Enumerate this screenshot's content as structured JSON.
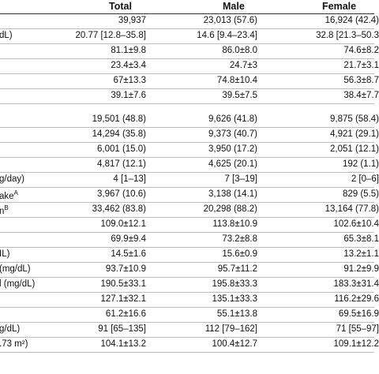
{
  "header": {
    "total": "Total",
    "male": "Male",
    "female": "Female"
  },
  "rows": [
    {
      "label": "",
      "total": "39,937",
      "male": "23,013 (57.6)",
      "female": "16,924 (42.4)"
    },
    {
      "label": "dL)",
      "total": "20.77 [12.8–35.8]",
      "male": "14.6 [9.4–23.4]",
      "female": "32.8 [21.3–50.3"
    },
    {
      "label": "",
      "total": "81.1±9.8",
      "male": "86.0±8.0",
      "female": "74.6±8.2"
    },
    {
      "label": "",
      "total": "23.4±3.4",
      "male": "24.7±3",
      "female": "21.7±3.1"
    },
    {
      "label": "",
      "total": "67±13.3",
      "male": "74.8±10.4",
      "female": "56.3±8.7"
    },
    {
      "label": "",
      "total": "39.1±7.6",
      "male": "39.5±7.5",
      "female": "38.4±7.7"
    },
    {
      "label": "",
      "total": "19,501 (48.8)",
      "male": "9,626 (41.8)",
      "female": "9,875 (58.4)"
    },
    {
      "label": "",
      "total": "14,294 (35.8)",
      "male": "9,373 (40.7)",
      "female": "4,921 (29.1)"
    },
    {
      "label": "",
      "total": "6,001 (15.0)",
      "male": "3,950 (17.2)",
      "female": "2,051 (12.1)"
    },
    {
      "label": "",
      "total": "4,817 (12.1)",
      "male": "4,625 (20.1)",
      "female": "192 (1.1)"
    },
    {
      "label": "g/day)",
      "total": "4 [1–13]",
      "male": "7 [3–19]",
      "female": "2 [0–6]"
    },
    {
      "label": "ake",
      "sup": "A",
      "total": "3,967 (10.6)",
      "male": "3,138 (14.1)",
      "female": "829 (5.5)"
    },
    {
      "label": "n",
      "sup": "B",
      "total": "33,462 (83.8)",
      "male": "20,298 (88.2)",
      "female": "13,164 (77.8)"
    },
    {
      "label": "",
      "total": "109.0±12.1",
      "male": "113.8±10.9",
      "female": "102.6±10.4"
    },
    {
      "label": "",
      "total": "69.9±9.4",
      "male": "73.2±8.8",
      "female": "65.3±8.1"
    },
    {
      "label": "IL)",
      "total": "14.5±1.6",
      "male": "15.6±0.9",
      "female": "13.2±1.1"
    },
    {
      "label": "(mg/dL)",
      "total": "93.7±10.9",
      "male": "95.7±11.2",
      "female": "91.2±9.9"
    },
    {
      "label": "l (mg/dL)",
      "total": "190.5±33.1",
      "male": "195.8±33.3",
      "female": "183.3±31.4"
    },
    {
      "label": "",
      "total": "127.1±32.1",
      "male": "135.1±33.3",
      "female": "116.2±29.6"
    },
    {
      "label": "",
      "total": "61.2±16.6",
      "male": "55.1±13.8",
      "female": "69.5±16.9"
    },
    {
      "label": "g/dL)",
      "total": "91 [65–135]",
      "male": "112 [79–162]",
      "female": "71 [55–97]"
    },
    {
      "label": ".73 m²)",
      "total": "104.1±13.2",
      "male": "100.4±12.7",
      "female": "109.1±12.2"
    }
  ]
}
